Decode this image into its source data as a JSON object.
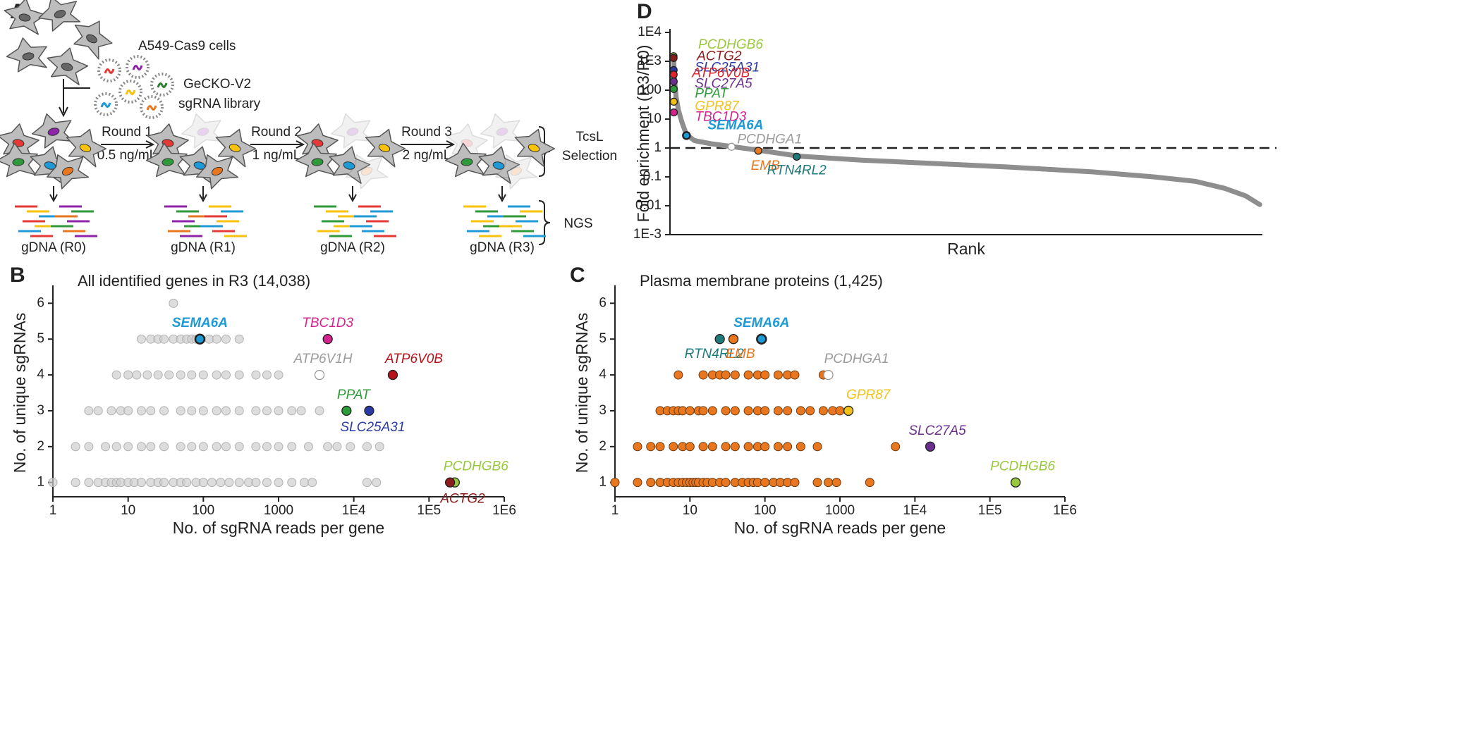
{
  "panel_labels": [
    "A",
    "B",
    "C",
    "D"
  ],
  "panel_a": {
    "cells_label": "A549-Cas9 cells",
    "library": [
      "GeCKO-V2",
      "sgRNA library"
    ],
    "rounds": [
      {
        "name": "Round 1",
        "dose": "0.5 ng/mL"
      },
      {
        "name": "Round 2",
        "dose": "1 ng/mL"
      },
      {
        "name": "Round 3",
        "dose": "2 ng/mL"
      }
    ],
    "selection": [
      "TcsL",
      "Selection"
    ],
    "ngs": "NGS",
    "gdna": [
      "gDNA (R0)",
      "gDNA (R1)",
      "gDNA (R2)",
      "gDNA (R3)"
    ]
  },
  "chart_data": [
    {
      "type": "scatter",
      "title": "All identified genes in R3 (14,038)",
      "x_label": "No. of sgRNA reads per gene",
      "y_label": "No. of unique sgRNAs",
      "x_scale": "log",
      "xlim": [
        1,
        1000000
      ],
      "xticks": [
        1,
        10,
        100,
        1000,
        {
          "value": 10000,
          "label": "1E4"
        },
        {
          "value": 100000,
          "label": "1E5"
        },
        {
          "value": 1000000,
          "label": "1E6"
        }
      ],
      "ylim": [
        0.6,
        6.4
      ],
      "yticks": [
        1,
        2,
        3,
        4,
        5,
        6
      ],
      "series": [
        {
          "color": "#cfcfcf",
          "x": [
            1,
            2,
            3,
            4,
            5,
            6,
            7,
            8,
            10,
            12,
            15,
            20,
            25,
            30,
            40,
            50,
            60,
            80,
            100,
            130,
            170,
            220,
            300,
            400,
            500,
            700,
            1000,
            1500,
            2200,
            2800,
            15000,
            20000,
            2,
            3,
            5,
            7,
            10,
            15,
            20,
            30,
            50,
            70,
            100,
            150,
            200,
            300,
            500,
            700,
            1000,
            1500,
            2500,
            4500,
            6000,
            9000,
            15000,
            22000,
            3,
            4,
            6,
            8,
            10,
            15,
            20,
            30,
            50,
            70,
            100,
            150,
            200,
            300,
            500,
            700,
            1000,
            1500,
            2000,
            3500,
            7,
            10,
            13,
            18,
            25,
            35,
            50,
            70,
            100,
            150,
            200,
            300,
            500,
            700,
            1000,
            3500,
            15,
            20,
            25,
            30,
            40,
            50,
            60,
            70,
            80,
            120,
            150,
            200,
            300,
            40
          ],
          "y": [
            1,
            1,
            1,
            1,
            1,
            1,
            1,
            1,
            1,
            1,
            1,
            1,
            1,
            1,
            1,
            1,
            1,
            1,
            1,
            1,
            1,
            1,
            1,
            1,
            1,
            1,
            1,
            1,
            1,
            1,
            1,
            1,
            2,
            2,
            2,
            2,
            2,
            2,
            2,
            2,
            2,
            2,
            2,
            2,
            2,
            2,
            2,
            2,
            2,
            2,
            2,
            2,
            2,
            2,
            2,
            2,
            3,
            3,
            3,
            3,
            3,
            3,
            3,
            3,
            3,
            3,
            3,
            3,
            3,
            3,
            3,
            3,
            3,
            3,
            3,
            3,
            4,
            4,
            4,
            4,
            4,
            4,
            4,
            4,
            4,
            4,
            4,
            4,
            4,
            4,
            4,
            4,
            5,
            5,
            5,
            5,
            5,
            5,
            5,
            5,
            5,
            5,
            5,
            5,
            5,
            6
          ]
        }
      ],
      "highlights": [
        {
          "label": "SEMA6A",
          "x": 90,
          "y": 5,
          "color": "#1e9ad6",
          "bold": true
        },
        {
          "label": "TBC1D3",
          "x": 4500,
          "y": 5,
          "color": "#d6248e"
        },
        {
          "label": "ATP6V1H",
          "x": 3500,
          "y": 4,
          "color": "#9b9b9b",
          "hollow": true
        },
        {
          "label": "ATP6V0B",
          "x": 33000,
          "y": 4,
          "color": "#b5121b"
        },
        {
          "label": "PPAT",
          "x": 8000,
          "y": 3,
          "color": "#2f9a3a"
        },
        {
          "label": "SLC25A31",
          "x": 16000,
          "y": 3,
          "color": "#2b3aa0"
        },
        {
          "label": "PCDHGB6",
          "x": 220000,
          "y": 1,
          "color": "#98c93c"
        },
        {
          "label": "ACTG2",
          "x": 190000,
          "y": 1,
          "color": "#8b1c1c"
        }
      ]
    },
    {
      "type": "scatter",
      "title": "Plasma membrane proteins (1,425)",
      "x_label": "No. of sgRNA reads per gene",
      "y_label": "No. of unique sgRNAs",
      "x_scale": "log",
      "xlim": [
        1,
        1000000
      ],
      "xticks": [
        1,
        10,
        100,
        1000,
        {
          "value": 10000,
          "label": "1E4"
        },
        {
          "value": 100000,
          "label": "1E5"
        },
        {
          "value": 1000000,
          "label": "1E6"
        }
      ],
      "ylim": [
        0.6,
        6.4
      ],
      "yticks": [
        1,
        2,
        3,
        4,
        5,
        6
      ],
      "series": [
        {
          "color": "#e8771f",
          "x": [
            1,
            2,
            3,
            4,
            5,
            6,
            7,
            8,
            9,
            10,
            11,
            12,
            13,
            15,
            17,
            20,
            25,
            30,
            40,
            50,
            60,
            70,
            80,
            100,
            130,
            160,
            200,
            250,
            500,
            700,
            900,
            2500,
            2,
            3,
            4,
            6,
            8,
            10,
            15,
            20,
            30,
            40,
            60,
            80,
            100,
            150,
            200,
            300,
            500,
            5500,
            4,
            5,
            6,
            7,
            8,
            10,
            13,
            15,
            20,
            30,
            40,
            60,
            80,
            100,
            150,
            200,
            300,
            400,
            600,
            800,
            1000,
            7,
            15,
            20,
            25,
            30,
            40,
            60,
            80,
            100,
            150,
            200,
            250,
            600
          ],
          "y": [
            1,
            1,
            1,
            1,
            1,
            1,
            1,
            1,
            1,
            1,
            1,
            1,
            1,
            1,
            1,
            1,
            1,
            1,
            1,
            1,
            1,
            1,
            1,
            1,
            1,
            1,
            1,
            1,
            1,
            1,
            1,
            1,
            2,
            2,
            2,
            2,
            2,
            2,
            2,
            2,
            2,
            2,
            2,
            2,
            2,
            2,
            2,
            2,
            2,
            2,
            3,
            3,
            3,
            3,
            3,
            3,
            3,
            3,
            3,
            3,
            3,
            3,
            3,
            3,
            3,
            3,
            3,
            3,
            3,
            3,
            3,
            4,
            4,
            4,
            4,
            4,
            4,
            4,
            4,
            4,
            4,
            4,
            4,
            4
          ]
        }
      ],
      "highlights": [
        {
          "label": "RTN4RL2",
          "x": 25,
          "y": 5,
          "color": "#1f7a7a"
        },
        {
          "label": "EMB",
          "x": 38,
          "y": 5,
          "color": "#e8771f"
        },
        {
          "label": "SEMA6A",
          "x": 90,
          "y": 5,
          "color": "#1e9ad6",
          "bold": true
        },
        {
          "label": "PCDHGA1",
          "x": 700,
          "y": 4,
          "color": "#9b9b9b",
          "hollow": true
        },
        {
          "label": "GPR87",
          "x": 1300,
          "y": 3,
          "color": "#f1c21b"
        },
        {
          "label": "SLC27A5",
          "x": 16000,
          "y": 2,
          "color": "#6b2f8f"
        },
        {
          "label": "PCDHGB6",
          "x": 220000,
          "y": 1,
          "color": "#98c93c"
        }
      ]
    },
    {
      "type": "line",
      "x_label": "Rank",
      "y_label": "Fold enrichment (R3/R0)",
      "y_scale": "log",
      "xlim": [
        0,
        14100
      ],
      "ylim": [
        0.001,
        10000
      ],
      "yticks": [
        {
          "value": 0.001,
          "label": "1E-3"
        },
        0.01,
        0.1,
        1,
        10,
        100,
        {
          "value": 1000,
          "label": "1E3"
        },
        {
          "value": 10000,
          "label": "1E4"
        }
      ],
      "hline": 1,
      "series": [
        {
          "color": "#8e8e8e",
          "x": [
            1,
            20,
            60,
            120,
            200,
            310,
            500,
            900,
            1400,
            2000,
            3000,
            4500,
            6000,
            8000,
            10000,
            11500,
            12500,
            13200,
            13700,
            14038
          ],
          "values": [
            1500,
            300,
            60,
            20,
            8,
            2.9,
            1.8,
            1.4,
            1.12,
            0.85,
            0.52,
            0.38,
            0.3,
            0.22,
            0.15,
            0.1,
            0.07,
            0.04,
            0.022,
            0.011
          ]
        }
      ],
      "highlights": [
        {
          "label": "PCDHGB6",
          "x": 1,
          "y": 1500,
          "color": "#98c93c"
        },
        {
          "label": "ACTG2",
          "x": 2,
          "y": 1300,
          "color": "#8b1c1c"
        },
        {
          "label": "SLC25A31",
          "x": 3,
          "y": 500,
          "color": "#2b3aa0"
        },
        {
          "label": "ATP6V0B",
          "x": 4,
          "y": 350,
          "color": "#e0242c"
        },
        {
          "label": "SLC27A5",
          "x": 5,
          "y": 200,
          "color": "#6b2f8f"
        },
        {
          "label": "PPAT",
          "x": 6,
          "y": 110,
          "color": "#2f9a3a"
        },
        {
          "label": "GPR87",
          "x": 7,
          "y": 40,
          "color": "#f1c21b"
        },
        {
          "label": "TBC1D3",
          "x": 8,
          "y": 17,
          "color": "#d6248e"
        },
        {
          "label": "SEMA6A",
          "x": 310,
          "y": 2.7,
          "color": "#1e9ad6",
          "bold": true
        },
        {
          "label": "PCDHGA1",
          "x": 1390,
          "y": 1.1,
          "color": "#9b9b9b",
          "hollow": true
        },
        {
          "label": "EMB",
          "x": 2030,
          "y": 0.8,
          "color": "#e8771f"
        },
        {
          "label": "RTN4RL2",
          "x": 2950,
          "y": 0.5,
          "color": "#1f7a7a"
        }
      ]
    }
  ]
}
